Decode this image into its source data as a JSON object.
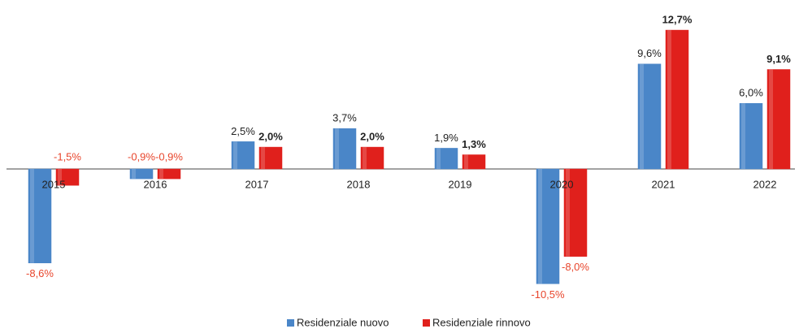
{
  "chart_data": {
    "type": "bar",
    "categories": [
      "2015",
      "2016",
      "2017",
      "2018",
      "2019",
      "2020",
      "2021",
      "2022"
    ],
    "series": [
      {
        "name": "Residenziale nuovo",
        "color": "#4a86c8",
        "values": [
          -8.6,
          -0.9,
          2.5,
          3.7,
          1.9,
          -10.5,
          9.6,
          6.0
        ],
        "value_labels": [
          "-8,6%",
          "-0,9%",
          "2,5%",
          "3,7%",
          "1,9%",
          "-10,5%",
          "9,6%",
          "6,0%"
        ]
      },
      {
        "name": "Residenziale rinnovo",
        "color": "#e0201c",
        "values": [
          -1.5,
          -0.9,
          2.0,
          2.0,
          1.3,
          -8.0,
          12.7,
          9.1
        ],
        "value_labels": [
          "-1,5%",
          "-0,9%",
          "2,0%",
          "2,0%",
          "1,3%",
          "-8,0%",
          "12,7%",
          "9,1%"
        ]
      }
    ],
    "negative_label_color": "#e8452c",
    "legend": "bottom"
  }
}
